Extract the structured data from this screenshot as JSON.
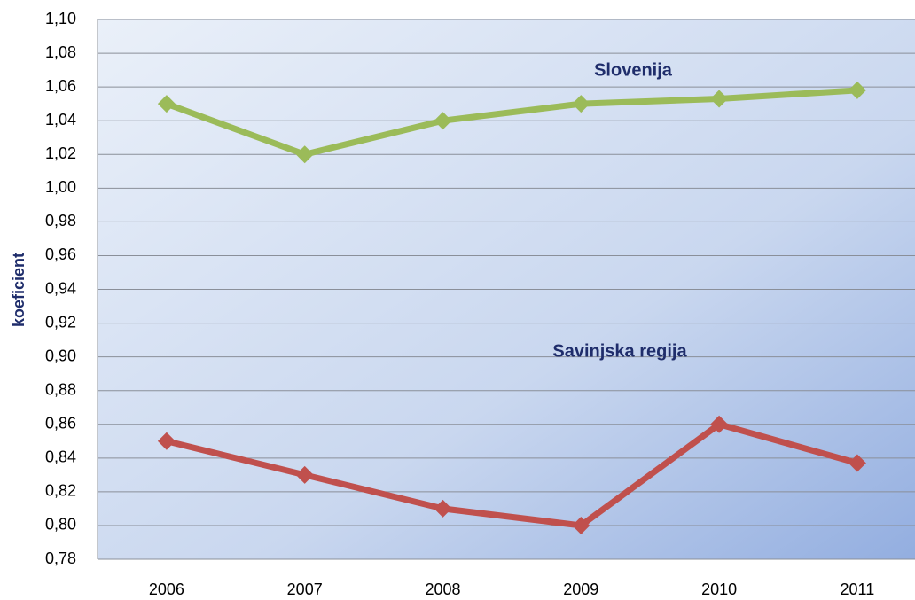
{
  "chart_data": {
    "type": "line",
    "y_label": "koeficient",
    "categories": [
      "2006",
      "2007",
      "2008",
      "2009",
      "2010",
      "2011"
    ],
    "series": [
      {
        "name": "Slovenija",
        "color": "#9bbb59",
        "values": [
          1.05,
          1.02,
          1.04,
          1.05,
          1.053,
          1.058
        ]
      },
      {
        "name": "Savinjska regija",
        "color": "#c0504d",
        "values": [
          0.85,
          0.83,
          0.81,
          0.8,
          0.86,
          0.837
        ]
      }
    ],
    "ylim": [
      0.78,
      1.1
    ],
    "yticks": [
      {
        "value": 0.78,
        "label": "0,78"
      },
      {
        "value": 0.8,
        "label": "0,80"
      },
      {
        "value": 0.82,
        "label": "0,82"
      },
      {
        "value": 0.84,
        "label": "0,84"
      },
      {
        "value": 0.86,
        "label": "0,86"
      },
      {
        "value": 0.88,
        "label": "0,88"
      },
      {
        "value": 0.9,
        "label": "0,90"
      },
      {
        "value": 0.92,
        "label": "0,92"
      },
      {
        "value": 0.94,
        "label": "0,94"
      },
      {
        "value": 0.96,
        "label": "0,96"
      },
      {
        "value": 0.98,
        "label": "0,98"
      },
      {
        "value": 1.0,
        "label": "1,00"
      },
      {
        "value": 1.02,
        "label": "1,02"
      },
      {
        "value": 1.04,
        "label": "1,04"
      },
      {
        "value": 1.06,
        "label": "1,06"
      },
      {
        "value": 1.08,
        "label": "1,08"
      },
      {
        "value": 1.1,
        "label": "1,10"
      }
    ],
    "grid": true
  }
}
